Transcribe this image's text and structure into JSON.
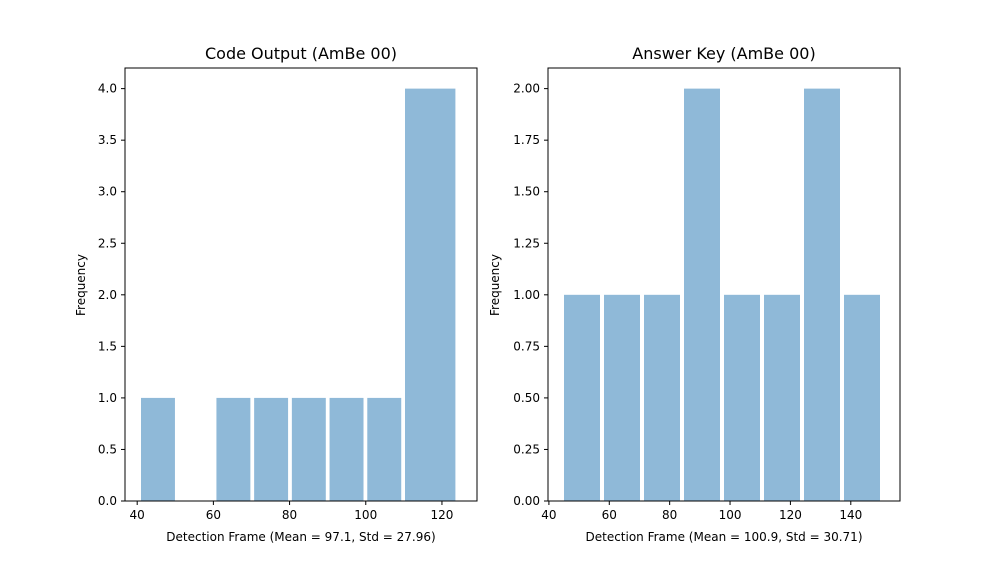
{
  "chart_data": [
    {
      "type": "bar",
      "title": "Code Output (AmBe 00)",
      "xlabel": "Detection Frame (Mean = 97.1, Std = 27.96)",
      "ylabel": "Frequency",
      "bins": [
        {
          "start": 41,
          "end": 50.9,
          "value": 1
        },
        {
          "start": 50.9,
          "end": 60.8,
          "value": 0
        },
        {
          "start": 60.8,
          "end": 70.7,
          "value": 1
        },
        {
          "start": 70.7,
          "end": 80.6,
          "value": 1
        },
        {
          "start": 80.6,
          "end": 90.5,
          "value": 1
        },
        {
          "start": 90.5,
          "end": 100.4,
          "value": 1
        },
        {
          "start": 100.4,
          "end": 110.3,
          "value": 1
        },
        {
          "start": 110.3,
          "end": 125,
          "value": 4
        }
      ],
      "xticks": [
        "40",
        "60",
        "80",
        "100",
        "120"
      ],
      "yticks": [
        "0.0",
        "0.5",
        "1.0",
        "1.5",
        "2.0",
        "2.5",
        "3.0",
        "3.5",
        "4.0"
      ],
      "xlim": [
        36.8,
        129.2
      ],
      "ylim": [
        0,
        4.2
      ],
      "grid": false,
      "color": "#8fb9d8"
    },
    {
      "type": "bar",
      "title": "Answer Key (AmBe 00)",
      "xlabel": "Detection Frame (Mean = 100.9, Std = 30.71)",
      "ylabel": "Frequency",
      "bins": [
        {
          "start": 45,
          "end": 58.25,
          "value": 1
        },
        {
          "start": 58.25,
          "end": 71.5,
          "value": 1
        },
        {
          "start": 71.5,
          "end": 84.75,
          "value": 1
        },
        {
          "start": 84.75,
          "end": 98,
          "value": 2
        },
        {
          "start": 98,
          "end": 111.25,
          "value": 1
        },
        {
          "start": 111.25,
          "end": 124.5,
          "value": 1
        },
        {
          "start": 124.5,
          "end": 137.75,
          "value": 2
        },
        {
          "start": 137.75,
          "end": 151,
          "value": 1
        }
      ],
      "xticks": [
        "40",
        "60",
        "80",
        "100",
        "120",
        "140"
      ],
      "yticks": [
        "0.00",
        "0.25",
        "0.50",
        "0.75",
        "1.00",
        "1.25",
        "1.50",
        "1.75",
        "2.00"
      ],
      "xlim": [
        39.7,
        156.3
      ],
      "ylim": [
        0,
        2.1
      ],
      "grid": false,
      "color": "#8fb9d8"
    }
  ]
}
